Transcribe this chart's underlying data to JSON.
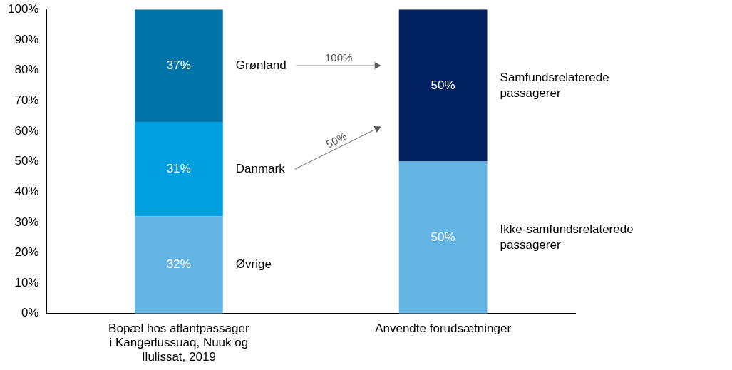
{
  "chart_data": {
    "type": "bar",
    "stacked": true,
    "categories": [
      "Bopæl hos atlantpassager i Kangerlussuaq, Nuuk og Ilulissat, 2019",
      "Anvendte forudsætninger"
    ],
    "series": [
      {
        "name": "Øvrige",
        "color": "#63b3e3",
        "values": [
          32,
          null
        ],
        "value_labels": [
          "32%",
          null
        ]
      },
      {
        "name": "Danmark",
        "color": "#009fe0",
        "values": [
          31,
          null
        ],
        "value_labels": [
          "31%",
          null
        ]
      },
      {
        "name": "Grønland",
        "color": "#0074a8",
        "values": [
          37,
          null
        ],
        "value_labels": [
          "37%",
          null
        ]
      },
      {
        "name": "Ikke-samfundsrelaterede passagerer",
        "color": "#63b3e3",
        "values": [
          null,
          50
        ],
        "value_labels": [
          null,
          "50%"
        ]
      },
      {
        "name": "Samfundsrelaterede passagerer",
        "color": "#002060",
        "values": [
          null,
          50
        ],
        "value_labels": [
          null,
          "50%"
        ]
      }
    ],
    "ylim": [
      0,
      100
    ],
    "yticks": [
      {
        "value": 0,
        "label": "0%"
      },
      {
        "value": 10,
        "label": "10%"
      },
      {
        "value": 20,
        "label": "20%"
      },
      {
        "value": 30,
        "label": "30%"
      },
      {
        "value": 40,
        "label": "40%"
      },
      {
        "value": 50,
        "label": "50%"
      },
      {
        "value": 60,
        "label": "60%"
      },
      {
        "value": 70,
        "label": "70%"
      },
      {
        "value": 80,
        "label": "80%"
      },
      {
        "value": 90,
        "label": "90%"
      },
      {
        "value": 100,
        "label": "100%"
      }
    ],
    "annotations": [
      "100%",
      "50%"
    ]
  }
}
